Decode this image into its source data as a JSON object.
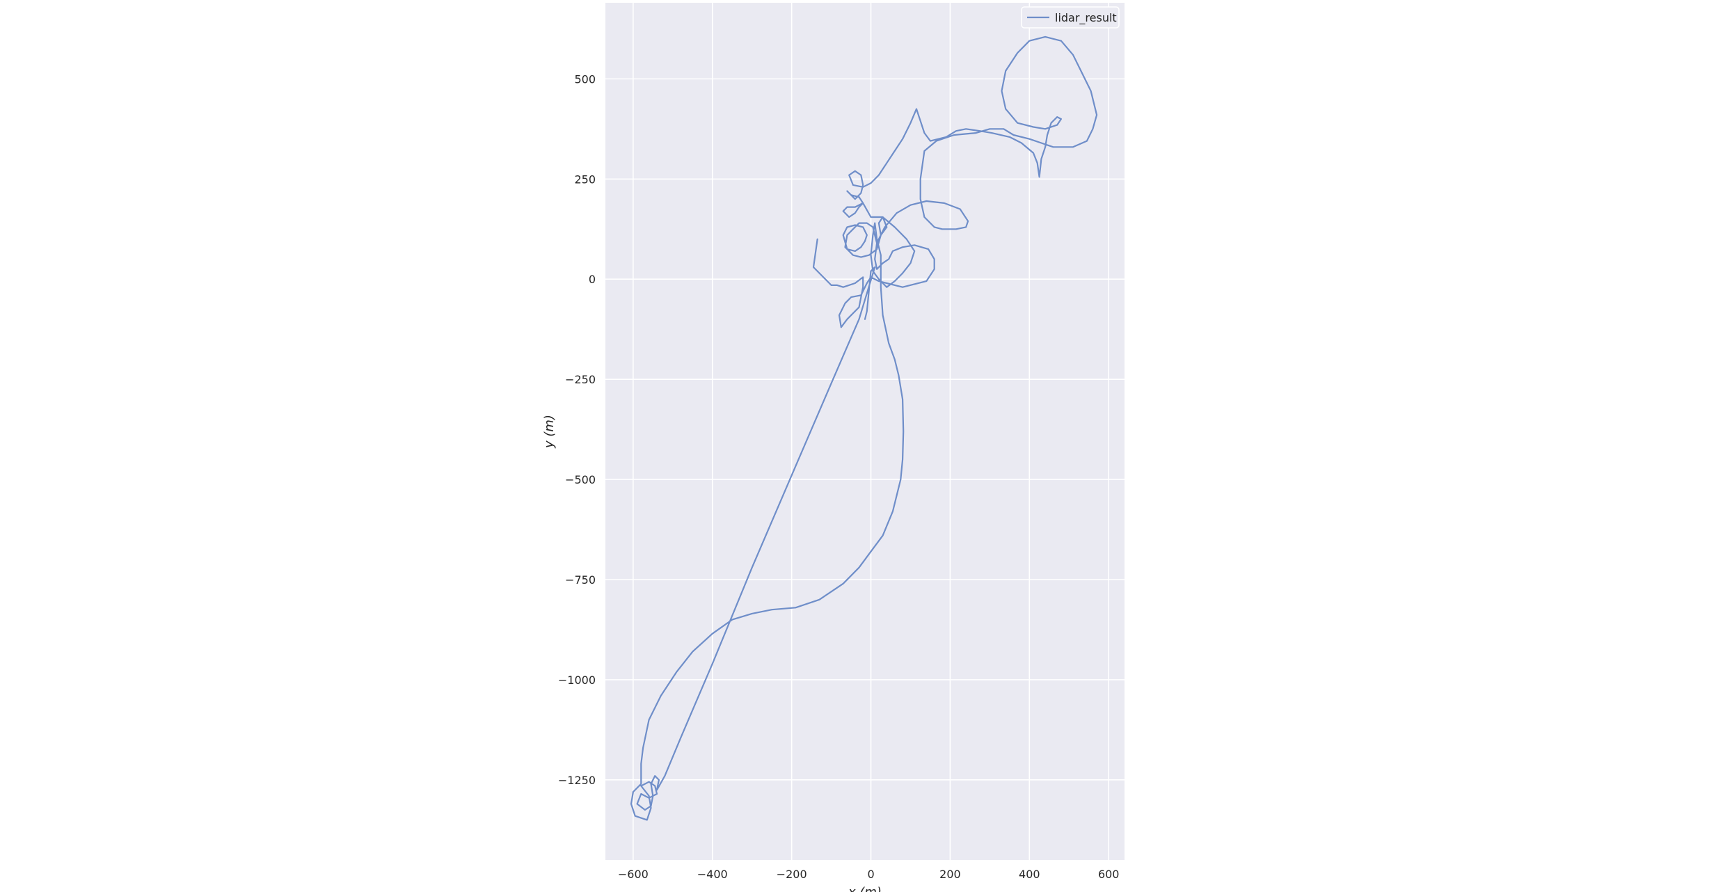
{
  "chart_data": {
    "type": "line",
    "title": "",
    "xlabel": "x (m)",
    "ylabel": "y (m)",
    "xlim": [
      -670,
      640
    ],
    "ylim": [
      -1450,
      690
    ],
    "xticks": [
      -600,
      -400,
      -200,
      0,
      200,
      400,
      600
    ],
    "yticks": [
      500,
      250,
      0,
      -250,
      -500,
      -750,
      -1000,
      -1250
    ],
    "xtick_labels": [
      "−600",
      "−400",
      "−200",
      "0",
      "200",
      "400",
      "600"
    ],
    "ytick_labels": [
      "500",
      "250",
      "0",
      "−250",
      "−500",
      "−750",
      "−1000",
      "−1250"
    ],
    "grid": true,
    "legend_position": "top-right",
    "colors": {
      "background": "#eaeaf2",
      "grid": "#ffffff",
      "line": "#6f8ec9",
      "text": "#262626"
    },
    "series": [
      {
        "name": "lidar_result",
        "points": [
          [
            -135,
            100
          ],
          [
            -145,
            30
          ],
          [
            -120,
            5
          ],
          [
            -100,
            -15
          ],
          [
            -85,
            -15
          ],
          [
            -70,
            -20
          ],
          [
            -40,
            -10
          ],
          [
            -20,
            5
          ],
          [
            -20,
            -20
          ],
          [
            -30,
            -70
          ],
          [
            -60,
            -100
          ],
          [
            -75,
            -120
          ],
          [
            -80,
            -90
          ],
          [
            -65,
            -60
          ],
          [
            -50,
            -45
          ],
          [
            -25,
            -40
          ],
          [
            -10,
            -10
          ],
          [
            0,
            5
          ],
          [
            20,
            -5
          ],
          [
            40,
            -10
          ],
          [
            80,
            -20
          ],
          [
            140,
            -5
          ],
          [
            160,
            25
          ],
          [
            160,
            50
          ],
          [
            145,
            75
          ],
          [
            110,
            85
          ],
          [
            80,
            80
          ],
          [
            55,
            70
          ],
          [
            45,
            50
          ],
          [
            30,
            40
          ],
          [
            15,
            25
          ],
          [
            10,
            50
          ],
          [
            15,
            90
          ],
          [
            35,
            130
          ],
          [
            65,
            165
          ],
          [
            100,
            185
          ],
          [
            140,
            195
          ],
          [
            185,
            190
          ],
          [
            225,
            175
          ],
          [
            245,
            145
          ],
          [
            240,
            130
          ],
          [
            215,
            125
          ],
          [
            180,
            125
          ],
          [
            160,
            130
          ],
          [
            135,
            155
          ],
          [
            125,
            200
          ],
          [
            125,
            250
          ],
          [
            135,
            320
          ],
          [
            165,
            345
          ],
          [
            210,
            360
          ],
          [
            265,
            365
          ],
          [
            300,
            375
          ],
          [
            335,
            375
          ],
          [
            360,
            360
          ],
          [
            400,
            350
          ],
          [
            430,
            340
          ],
          [
            460,
            330
          ],
          [
            510,
            330
          ],
          [
            545,
            345
          ],
          [
            560,
            375
          ],
          [
            570,
            410
          ],
          [
            555,
            470
          ],
          [
            530,
            520
          ],
          [
            510,
            560
          ],
          [
            480,
            595
          ],
          [
            440,
            605
          ],
          [
            400,
            595
          ],
          [
            370,
            565
          ],
          [
            340,
            520
          ],
          [
            330,
            470
          ],
          [
            340,
            425
          ],
          [
            370,
            390
          ],
          [
            410,
            380
          ],
          [
            440,
            375
          ],
          [
            470,
            385
          ],
          [
            480,
            400
          ],
          [
            470,
            405
          ],
          [
            455,
            390
          ],
          [
            445,
            360
          ],
          [
            440,
            330
          ],
          [
            430,
            300
          ],
          [
            425,
            255
          ],
          [
            420,
            290
          ],
          [
            410,
            315
          ],
          [
            380,
            340
          ],
          [
            350,
            355
          ],
          [
            305,
            365
          ],
          [
            275,
            370
          ],
          [
            240,
            375
          ],
          [
            215,
            370
          ],
          [
            190,
            355
          ],
          [
            150,
            345
          ],
          [
            135,
            365
          ],
          [
            125,
            395
          ],
          [
            115,
            425
          ],
          [
            100,
            390
          ],
          [
            80,
            350
          ],
          [
            60,
            320
          ],
          [
            40,
            290
          ],
          [
            20,
            260
          ],
          [
            0,
            240
          ],
          [
            -20,
            230
          ],
          [
            -45,
            235
          ],
          [
            -55,
            260
          ],
          [
            -40,
            270
          ],
          [
            -25,
            260
          ],
          [
            -20,
            235
          ],
          [
            -25,
            215
          ],
          [
            -40,
            200
          ],
          [
            -60,
            220
          ],
          [
            -50,
            210
          ],
          [
            -30,
            205
          ],
          [
            -20,
            190
          ],
          [
            -40,
            180
          ],
          [
            -60,
            180
          ],
          [
            -70,
            170
          ],
          [
            -55,
            155
          ],
          [
            -40,
            165
          ],
          [
            -30,
            180
          ],
          [
            -20,
            190
          ],
          [
            0,
            155
          ],
          [
            30,
            155
          ],
          [
            40,
            130
          ],
          [
            25,
            110
          ],
          [
            15,
            90
          ],
          [
            10,
            110
          ],
          [
            5,
            130
          ],
          [
            -10,
            140
          ],
          [
            -30,
            140
          ],
          [
            -45,
            125
          ],
          [
            -60,
            110
          ],
          [
            -65,
            80
          ],
          [
            -60,
            75
          ],
          [
            -40,
            70
          ],
          [
            -25,
            80
          ],
          [
            -15,
            95
          ],
          [
            -10,
            110
          ],
          [
            -20,
            130
          ],
          [
            -40,
            135
          ],
          [
            -60,
            130
          ],
          [
            -70,
            110
          ],
          [
            -60,
            75
          ],
          [
            -45,
            60
          ],
          [
            -25,
            55
          ],
          [
            -5,
            60
          ],
          [
            15,
            75
          ],
          [
            25,
            110
          ],
          [
            20,
            140
          ],
          [
            30,
            155
          ],
          [
            60,
            130
          ],
          [
            90,
            100
          ],
          [
            110,
            70
          ],
          [
            100,
            40
          ],
          [
            80,
            15
          ],
          [
            60,
            -5
          ],
          [
            40,
            -20
          ],
          [
            20,
            0
          ],
          [
            5,
            20
          ],
          [
            0,
            60
          ],
          [
            5,
            110
          ],
          [
            10,
            140
          ],
          [
            15,
            100
          ],
          [
            25,
            60
          ],
          [
            25,
            -20
          ],
          [
            30,
            -90
          ],
          [
            45,
            -160
          ],
          [
            60,
            -200
          ],
          [
            70,
            -240
          ],
          [
            80,
            -300
          ],
          [
            82,
            -380
          ],
          [
            80,
            -450
          ],
          [
            75,
            -500
          ],
          [
            55,
            -580
          ],
          [
            30,
            -640
          ],
          [
            0,
            -680
          ],
          [
            -30,
            -720
          ],
          [
            -70,
            -760
          ],
          [
            -130,
            -800
          ],
          [
            -190,
            -820
          ],
          [
            -250,
            -825
          ],
          [
            -300,
            -835
          ],
          [
            -350,
            -850
          ],
          [
            -400,
            -885
          ],
          [
            -450,
            -930
          ],
          [
            -490,
            -980
          ],
          [
            -530,
            -1040
          ],
          [
            -560,
            -1100
          ],
          [
            -575,
            -1170
          ],
          [
            -580,
            -1210
          ],
          [
            -580,
            -1260
          ],
          [
            -600,
            -1280
          ],
          [
            -605,
            -1310
          ],
          [
            -595,
            -1340
          ],
          [
            -565,
            -1350
          ],
          [
            -555,
            -1320
          ],
          [
            -560,
            -1290
          ],
          [
            -580,
            -1265
          ],
          [
            -560,
            -1255
          ],
          [
            -545,
            -1265
          ],
          [
            -540,
            -1285
          ],
          [
            -560,
            -1295
          ],
          [
            -580,
            -1285
          ],
          [
            -590,
            -1310
          ],
          [
            -570,
            -1325
          ],
          [
            -555,
            -1315
          ],
          [
            -550,
            -1290
          ],
          [
            -555,
            -1260
          ],
          [
            -545,
            -1240
          ],
          [
            -535,
            -1250
          ],
          [
            -540,
            -1275
          ],
          [
            -520,
            -1240
          ],
          [
            -480,
            -1145
          ],
          [
            -400,
            -960
          ],
          [
            -300,
            -720
          ],
          [
            -200,
            -490
          ],
          [
            -100,
            -260
          ],
          [
            -30,
            -100
          ],
          [
            10,
            30
          ],
          [
            0,
            20
          ],
          [
            -10,
            -80
          ],
          [
            -15,
            -100
          ]
        ]
      }
    ]
  }
}
